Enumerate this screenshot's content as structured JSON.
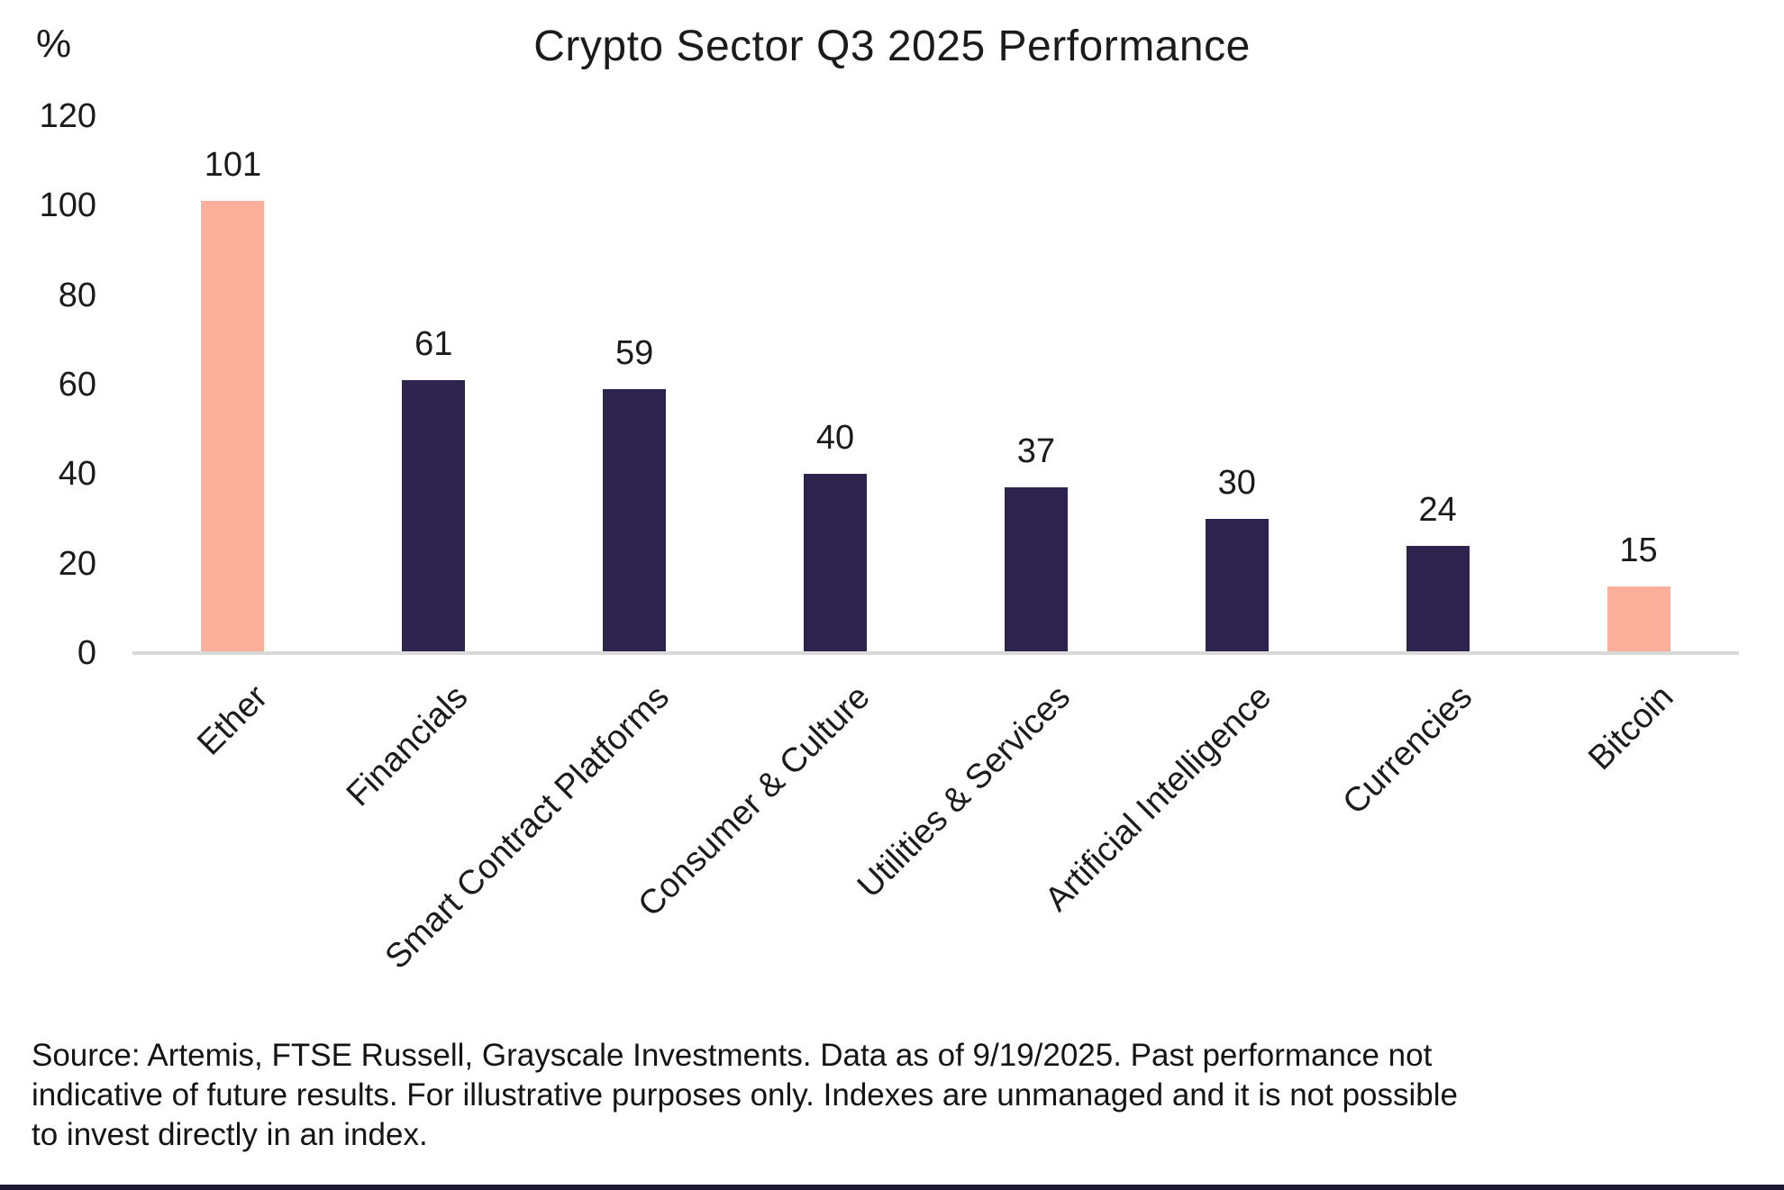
{
  "chart_data": {
    "type": "bar",
    "title": "Crypto Sector Q3 2025 Performance",
    "unit_label": "%",
    "categories": [
      "Ether",
      "Financials",
      "Smart Contract Platforms",
      "Consumer & Culture",
      "Utilities & Services",
      "Artificial Intelligence",
      "Currencies",
      "Bitcoin"
    ],
    "values": [
      101,
      61,
      59,
      40,
      37,
      30,
      24,
      15
    ],
    "bar_color_roles": [
      "accent",
      "primary",
      "primary",
      "primary",
      "primary",
      "primary",
      "primary",
      "accent"
    ],
    "ylim": [
      0,
      120
    ],
    "yticks": [
      0,
      20,
      40,
      60,
      80,
      100,
      120
    ],
    "grid": false,
    "value_labels": true,
    "legend": "none",
    "xlabel": "",
    "ylabel": "%"
  },
  "colors": {
    "accent": "#FCB09B",
    "primary": "#2D234E",
    "axis": "#D9D9D9",
    "text": "#1B1B1B",
    "footer_bar": "#1D1734"
  },
  "source": {
    "lines": [
      "Source: Artemis, FTSE Russell, Grayscale Investments. Data as of 9/19/2025. Past performance not",
      "indicative of future results. For illustrative purposes only. Indexes are unmanaged and it is not possible",
      "to invest directly in an index."
    ]
  }
}
